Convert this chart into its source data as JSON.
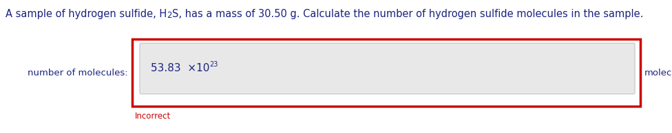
{
  "title_text1": "A sample of hydrogen sulfide, H",
  "title_text2": "2",
  "title_text3": "S, has a mass of 30.50 g. Calculate the number of hydrogen sulfide molecules in the sample.",
  "label_left": "number of molecules:",
  "label_right": "molecules",
  "answer_text": "53.83  ×10",
  "answer_exp": "23",
  "incorrect_text": "Incorrect",
  "title_color": "#1a237e",
  "label_color": "#1a237e",
  "answer_color": "#1a237e",
  "incorrect_color": "#cc0000",
  "background_color": "#ffffff",
  "box_border_color": "#cc0000",
  "inner_box_color": "#e8e8e8",
  "inner_box_border_color": "#cccccc",
  "title_fontsize": 10.5,
  "label_fontsize": 9.5,
  "answer_fontsize": 11,
  "incorrect_fontsize": 8.5
}
